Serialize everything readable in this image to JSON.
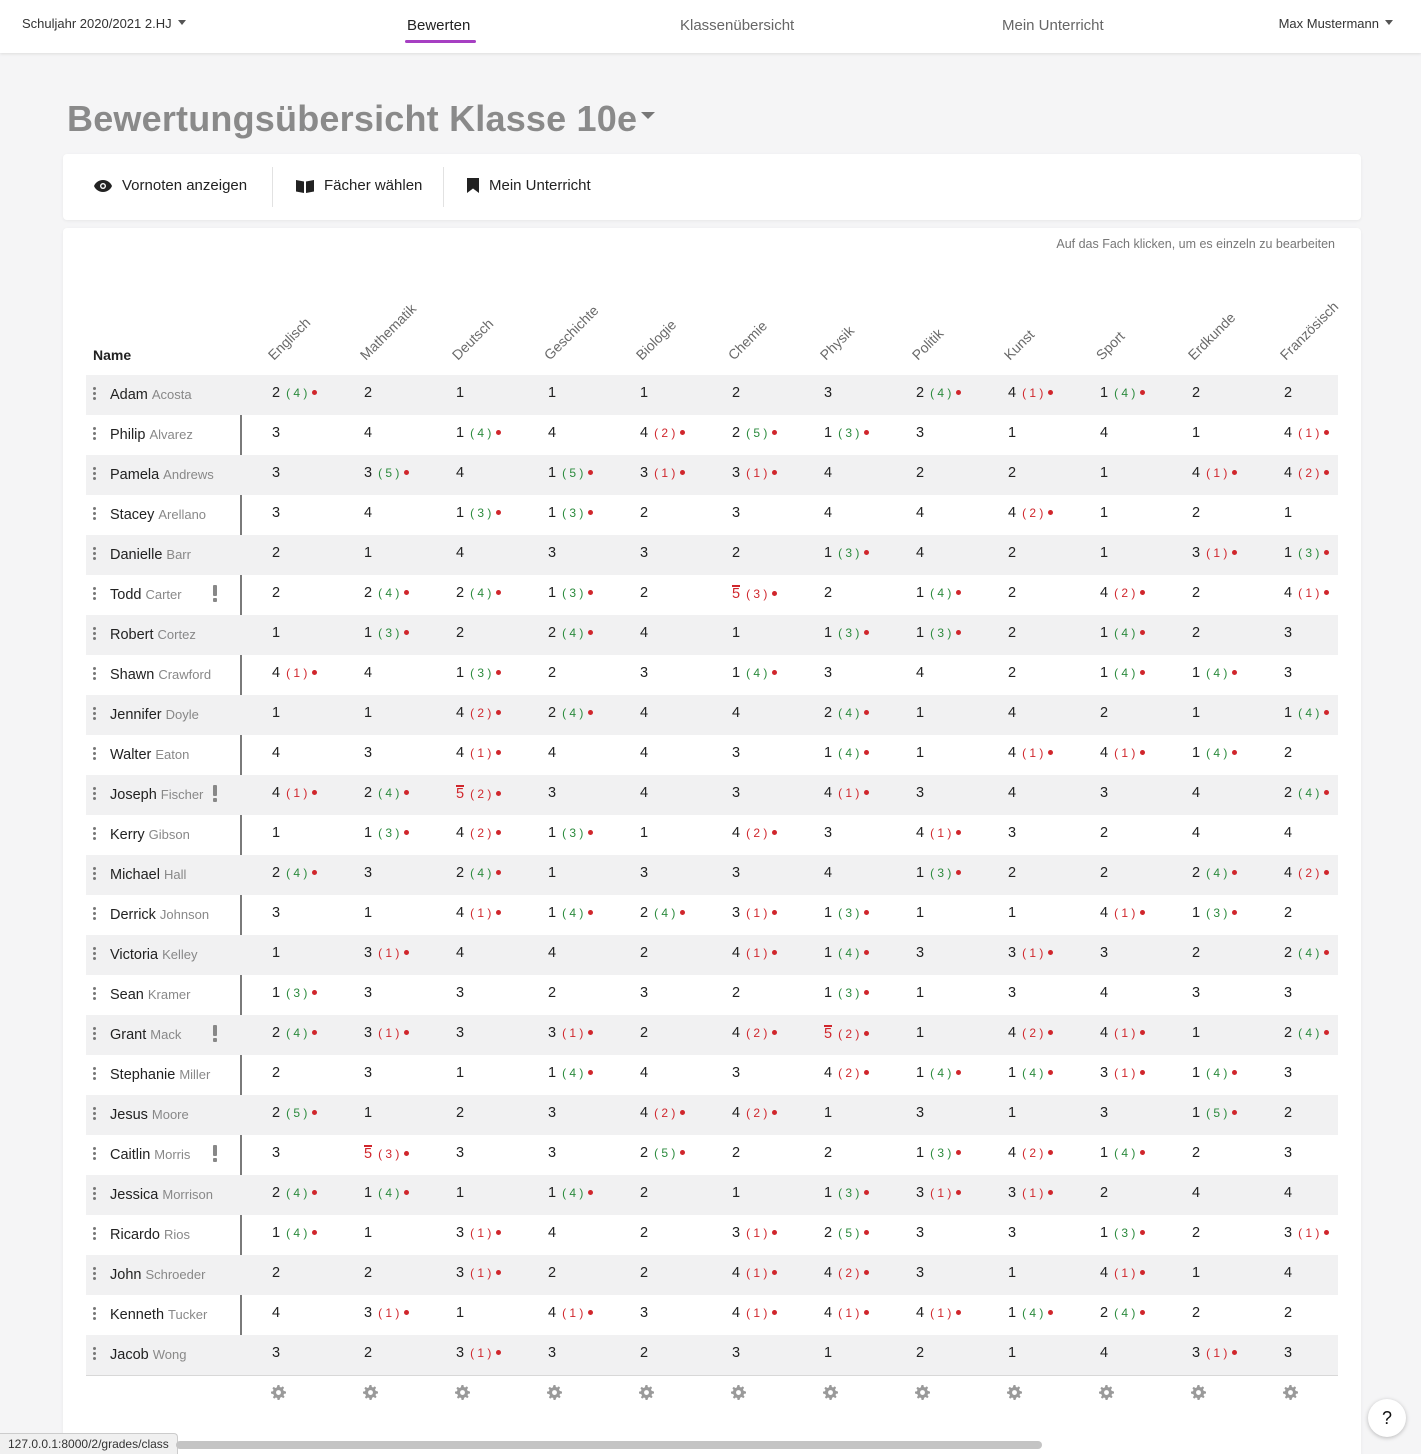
{
  "topbar": {
    "school_year": "Schuljahr 2020/2021 2.HJ",
    "nav": [
      "Bewerten",
      "Klassenübersicht",
      "Mein Unterricht"
    ],
    "active_nav": "Bewerten",
    "user": "Max Mustermann"
  },
  "page_title": "Bewertungsübersicht Klasse 10e",
  "toolbar": {
    "show_pregrades": "Vornoten anzeigen",
    "choose_subjects": "Fächer wählen",
    "my_lessons": "Mein Unterricht"
  },
  "hint": "Auf das Fach klicken, um es einzeln zu bearbeiten",
  "name_header": "Name",
  "subjects": [
    "Englisch",
    "Mathematik",
    "Deutsch",
    "Geschichte",
    "Biologie",
    "Chemie",
    "Physik",
    "Politik",
    "Kunst",
    "Sport",
    "Erdkunde",
    "Französisch"
  ],
  "colors": {
    "accent": "#a63fc2",
    "fail": "#d0262c",
    "improved": "#2a8a3c"
  },
  "students": [
    {
      "first": "Adam",
      "last": "Acosta",
      "warn": false,
      "grades": [
        [
          2,
          4
        ],
        [
          2
        ],
        [
          1
        ],
        [
          1
        ],
        [
          1
        ],
        [
          2
        ],
        [
          3
        ],
        [
          2,
          4
        ],
        [
          4,
          1
        ],
        [
          1,
          4
        ],
        [
          2
        ],
        [
          2
        ]
      ]
    },
    {
      "first": "Philip",
      "last": "Alvarez",
      "warn": false,
      "grades": [
        [
          3
        ],
        [
          4
        ],
        [
          1,
          4
        ],
        [
          4
        ],
        [
          4,
          2
        ],
        [
          2,
          5
        ],
        [
          1,
          3
        ],
        [
          3
        ],
        [
          1
        ],
        [
          4
        ],
        [
          1
        ],
        [
          4,
          1
        ]
      ]
    },
    {
      "first": "Pamela",
      "last": "Andrews",
      "warn": false,
      "grades": [
        [
          3
        ],
        [
          3,
          5
        ],
        [
          4
        ],
        [
          1,
          5
        ],
        [
          3,
          1
        ],
        [
          3,
          1
        ],
        [
          4
        ],
        [
          2
        ],
        [
          2
        ],
        [
          1
        ],
        [
          4,
          1
        ],
        [
          4,
          2
        ]
      ]
    },
    {
      "first": "Stacey",
      "last": "Arellano",
      "warn": false,
      "grades": [
        [
          3
        ],
        [
          4
        ],
        [
          1,
          3
        ],
        [
          1,
          3
        ],
        [
          2
        ],
        [
          3
        ],
        [
          4
        ],
        [
          4
        ],
        [
          4,
          2
        ],
        [
          1
        ],
        [
          2
        ],
        [
          1
        ]
      ]
    },
    {
      "first": "Danielle",
      "last": "Barr",
      "warn": false,
      "grades": [
        [
          2
        ],
        [
          1
        ],
        [
          4
        ],
        [
          3
        ],
        [
          3
        ],
        [
          2
        ],
        [
          1,
          3
        ],
        [
          4
        ],
        [
          2
        ],
        [
          1
        ],
        [
          3,
          1
        ],
        [
          1,
          3
        ]
      ]
    },
    {
      "first": "Todd",
      "last": "Carter",
      "warn": true,
      "grades": [
        [
          2
        ],
        [
          2,
          4
        ],
        [
          2,
          4
        ],
        [
          1,
          3
        ],
        [
          2
        ],
        [
          5,
          3
        ],
        [
          2
        ],
        [
          1,
          4
        ],
        [
          2
        ],
        [
          4,
          2
        ],
        [
          2
        ],
        [
          4,
          1
        ]
      ]
    },
    {
      "first": "Robert",
      "last": "Cortez",
      "warn": false,
      "grades": [
        [
          1
        ],
        [
          1,
          3
        ],
        [
          2
        ],
        [
          2,
          4
        ],
        [
          4
        ],
        [
          1
        ],
        [
          1,
          3
        ],
        [
          1,
          3
        ],
        [
          2
        ],
        [
          1,
          4
        ],
        [
          2
        ],
        [
          3
        ]
      ]
    },
    {
      "first": "Shawn",
      "last": "Crawford",
      "warn": false,
      "grades": [
        [
          4,
          1
        ],
        [
          4
        ],
        [
          1,
          3
        ],
        [
          2
        ],
        [
          3
        ],
        [
          1,
          4
        ],
        [
          3
        ],
        [
          4
        ],
        [
          2
        ],
        [
          1,
          4
        ],
        [
          1,
          4
        ],
        [
          3
        ]
      ]
    },
    {
      "first": "Jennifer",
      "last": "Doyle",
      "warn": false,
      "grades": [
        [
          1
        ],
        [
          1
        ],
        [
          4,
          2
        ],
        [
          2,
          4
        ],
        [
          4
        ],
        [
          4
        ],
        [
          2,
          4
        ],
        [
          1
        ],
        [
          4
        ],
        [
          2
        ],
        [
          1
        ],
        [
          1,
          4
        ]
      ]
    },
    {
      "first": "Walter",
      "last": "Eaton",
      "warn": false,
      "grades": [
        [
          4
        ],
        [
          3
        ],
        [
          4,
          1
        ],
        [
          4
        ],
        [
          4
        ],
        [
          3
        ],
        [
          1,
          4
        ],
        [
          1
        ],
        [
          4,
          1
        ],
        [
          4,
          1
        ],
        [
          1,
          4
        ],
        [
          2
        ]
      ]
    },
    {
      "first": "Joseph",
      "last": "Fischer",
      "warn": true,
      "grades": [
        [
          4,
          1
        ],
        [
          2,
          4
        ],
        [
          5,
          2
        ],
        [
          3
        ],
        [
          4
        ],
        [
          3
        ],
        [
          4,
          1
        ],
        [
          3
        ],
        [
          4
        ],
        [
          3
        ],
        [
          4
        ],
        [
          2,
          4
        ]
      ]
    },
    {
      "first": "Kerry",
      "last": "Gibson",
      "warn": false,
      "grades": [
        [
          1
        ],
        [
          1,
          3
        ],
        [
          4,
          2
        ],
        [
          1,
          3
        ],
        [
          1
        ],
        [
          4,
          2
        ],
        [
          3
        ],
        [
          4,
          1
        ],
        [
          3
        ],
        [
          2
        ],
        [
          4
        ],
        [
          4
        ]
      ]
    },
    {
      "first": "Michael",
      "last": "Hall",
      "warn": false,
      "grades": [
        [
          2,
          4
        ],
        [
          3
        ],
        [
          2,
          4
        ],
        [
          1
        ],
        [
          3
        ],
        [
          3
        ],
        [
          4
        ],
        [
          1,
          3
        ],
        [
          2
        ],
        [
          2
        ],
        [
          2,
          4
        ],
        [
          4,
          2
        ]
      ]
    },
    {
      "first": "Derrick",
      "last": "Johnson",
      "warn": false,
      "grades": [
        [
          3
        ],
        [
          1
        ],
        [
          4,
          1
        ],
        [
          1,
          4
        ],
        [
          2,
          4
        ],
        [
          3,
          1
        ],
        [
          1,
          3
        ],
        [
          1
        ],
        [
          1
        ],
        [
          4,
          1
        ],
        [
          1,
          3
        ],
        [
          2
        ]
      ]
    },
    {
      "first": "Victoria",
      "last": "Kelley",
      "warn": false,
      "grades": [
        [
          1
        ],
        [
          3,
          1
        ],
        [
          4
        ],
        [
          4
        ],
        [
          2
        ],
        [
          4,
          1
        ],
        [
          1,
          4
        ],
        [
          3
        ],
        [
          3,
          1
        ],
        [
          3
        ],
        [
          2
        ],
        [
          2,
          4
        ]
      ]
    },
    {
      "first": "Sean",
      "last": "Kramer",
      "warn": false,
      "grades": [
        [
          1,
          3
        ],
        [
          3
        ],
        [
          3
        ],
        [
          2
        ],
        [
          3
        ],
        [
          2
        ],
        [
          1,
          3
        ],
        [
          1
        ],
        [
          3
        ],
        [
          4
        ],
        [
          3
        ],
        [
          3
        ]
      ]
    },
    {
      "first": "Grant",
      "last": "Mack",
      "warn": true,
      "grades": [
        [
          2,
          4
        ],
        [
          3,
          1
        ],
        [
          3
        ],
        [
          3,
          1
        ],
        [
          2
        ],
        [
          4,
          2
        ],
        [
          5,
          2
        ],
        [
          1
        ],
        [
          4,
          2
        ],
        [
          4,
          1
        ],
        [
          1
        ],
        [
          2,
          4
        ]
      ]
    },
    {
      "first": "Stephanie",
      "last": "Miller",
      "warn": false,
      "grades": [
        [
          2
        ],
        [
          3
        ],
        [
          1
        ],
        [
          1,
          4
        ],
        [
          4
        ],
        [
          3
        ],
        [
          4,
          2
        ],
        [
          1,
          4
        ],
        [
          1,
          4
        ],
        [
          3,
          1
        ],
        [
          1,
          4
        ],
        [
          3
        ]
      ]
    },
    {
      "first": "Jesus",
      "last": "Moore",
      "warn": false,
      "grades": [
        [
          2,
          5
        ],
        [
          1
        ],
        [
          2
        ],
        [
          3
        ],
        [
          4,
          2
        ],
        [
          4,
          2
        ],
        [
          1
        ],
        [
          3
        ],
        [
          1
        ],
        [
          3
        ],
        [
          1,
          5
        ],
        [
          2
        ]
      ]
    },
    {
      "first": "Caitlin",
      "last": "Morris",
      "warn": true,
      "grades": [
        [
          3
        ],
        [
          5,
          3
        ],
        [
          3
        ],
        [
          3
        ],
        [
          2,
          5
        ],
        [
          2
        ],
        [
          2
        ],
        [
          1,
          3
        ],
        [
          4,
          2
        ],
        [
          1,
          4
        ],
        [
          2
        ],
        [
          3
        ]
      ]
    },
    {
      "first": "Jessica",
      "last": "Morrison",
      "warn": false,
      "grades": [
        [
          2,
          4
        ],
        [
          1,
          4
        ],
        [
          1
        ],
        [
          1,
          4
        ],
        [
          2
        ],
        [
          1
        ],
        [
          1,
          3
        ],
        [
          3,
          1
        ],
        [
          3,
          1
        ],
        [
          2
        ],
        [
          4
        ],
        [
          4
        ]
      ]
    },
    {
      "first": "Ricardo",
      "last": "Rios",
      "warn": false,
      "grades": [
        [
          1,
          4
        ],
        [
          1
        ],
        [
          3,
          1
        ],
        [
          4
        ],
        [
          2
        ],
        [
          3,
          1
        ],
        [
          2,
          5
        ],
        [
          3
        ],
        [
          3
        ],
        [
          1,
          3
        ],
        [
          2
        ],
        [
          3,
          1
        ]
      ]
    },
    {
      "first": "John",
      "last": "Schroeder",
      "warn": false,
      "grades": [
        [
          2
        ],
        [
          2
        ],
        [
          3,
          1
        ],
        [
          2
        ],
        [
          2
        ],
        [
          4,
          1
        ],
        [
          4,
          2
        ],
        [
          3
        ],
        [
          1
        ],
        [
          4,
          1
        ],
        [
          1
        ],
        [
          4
        ]
      ]
    },
    {
      "first": "Kenneth",
      "last": "Tucker",
      "warn": false,
      "grades": [
        [
          4
        ],
        [
          3,
          1
        ],
        [
          1
        ],
        [
          4,
          1
        ],
        [
          3
        ],
        [
          4,
          1
        ],
        [
          4,
          1
        ],
        [
          4,
          1
        ],
        [
          1,
          4
        ],
        [
          2,
          4
        ],
        [
          2
        ],
        [
          2
        ]
      ]
    },
    {
      "first": "Jacob",
      "last": "Wong",
      "warn": false,
      "grades": [
        [
          3
        ],
        [
          2
        ],
        [
          3,
          1
        ],
        [
          3
        ],
        [
          2
        ],
        [
          3
        ],
        [
          1
        ],
        [
          2
        ],
        [
          1
        ],
        [
          4
        ],
        [
          3,
          1
        ],
        [
          3
        ]
      ]
    }
  ],
  "status_url": "127.0.0.1:8000/2/grades/class",
  "help_label": "?"
}
